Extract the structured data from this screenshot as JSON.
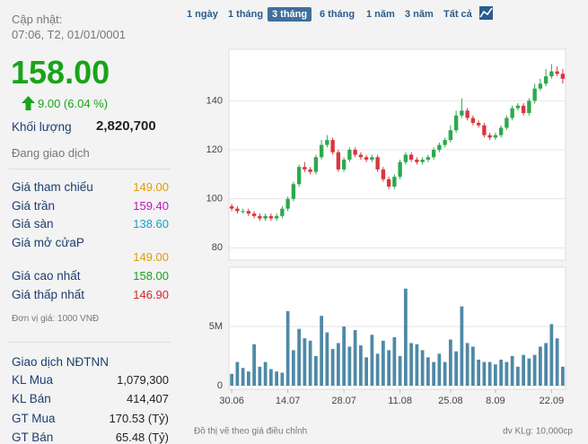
{
  "header": {
    "updated_label": "Cập nhật:",
    "updated_time": "07:06, T2, 01/01/0001",
    "price": "158.00",
    "change": "9.00 (6.04 %)"
  },
  "volume": {
    "label": "Khối lượng",
    "value": "2,820,700"
  },
  "status": "Đang giao dịch",
  "prices": [
    [
      "Giá tham chiếu",
      "149.00"
    ],
    [
      "Giá trần",
      "159.40"
    ],
    [
      "Giá sàn",
      "138.60"
    ],
    [
      "Giá mở cửaP",
      "149.00"
    ],
    [
      "Giá cao nhất",
      "158.00"
    ],
    [
      "Giá thấp nhất",
      "146.90"
    ]
  ],
  "unit_note": "Đơn vị giá: 1000 VNĐ",
  "foreign": {
    "title": "Giao dịch NĐTNN",
    "rows": [
      [
        "KL Mua",
        "1,079,300"
      ],
      [
        "KL Bán",
        "414,407"
      ],
      [
        "GT Mua",
        "170.53 (Tỷ)"
      ],
      [
        "GT Bán",
        "65.48 (Tỷ)"
      ]
    ]
  },
  "range_buttons": [
    "1 ngày",
    "1 tháng",
    "3 tháng",
    "6 tháng",
    "1 năm",
    "3 năm",
    "Tất cả"
  ],
  "note": "Đồ thị vẽ theo giá điều chỉnh",
  "unit": "dv KLg: 10,000cp",
  "chart_data": [
    {
      "type": "candlestick",
      "up_color": "#2fa84f",
      "down_color": "#d9363e",
      "open": [
        97,
        96,
        95,
        95,
        94,
        93,
        92,
        93,
        92,
        93,
        96,
        100,
        106,
        113,
        112,
        111,
        117,
        122,
        124,
        119,
        112,
        116,
        120,
        118,
        117,
        116,
        117,
        112,
        108,
        105,
        109,
        115,
        118,
        116,
        115,
        116,
        117,
        120,
        122,
        124,
        128,
        134,
        136,
        133,
        131,
        130,
        126,
        125,
        126,
        129,
        133,
        137,
        138,
        135,
        140,
        145,
        147,
        150,
        152,
        151
      ],
      "high": [
        98,
        97,
        96,
        96,
        95,
        94,
        94,
        94,
        94,
        97,
        101,
        107,
        114,
        115,
        113,
        118,
        124,
        126,
        125,
        120,
        117,
        121,
        121,
        119,
        118,
        118,
        118,
        113,
        109,
        110,
        116,
        119,
        119,
        117,
        117,
        118,
        121,
        123,
        125,
        130,
        136,
        141,
        137,
        134,
        132,
        131,
        127,
        127,
        130,
        134,
        138,
        139,
        139,
        141,
        147,
        149,
        153,
        155,
        154,
        153
      ],
      "low": [
        95,
        94,
        94,
        93,
        92,
        91,
        91,
        91,
        91,
        92,
        95,
        99,
        105,
        111,
        110,
        110,
        116,
        121,
        118,
        111,
        111,
        115,
        117,
        116,
        115,
        115,
        111,
        107,
        104,
        104,
        108,
        114,
        115,
        114,
        114,
        115,
        116,
        119,
        121,
        123,
        127,
        133,
        132,
        130,
        129,
        125,
        124,
        124,
        125,
        128,
        132,
        136,
        134,
        134,
        139,
        144,
        146,
        149,
        150,
        147
      ],
      "close": [
        96,
        95,
        95,
        94,
        93,
        92,
        93,
        92,
        93,
        96,
        100,
        106,
        113,
        112,
        111,
        117,
        122,
        124,
        119,
        112,
        116,
        120,
        118,
        117,
        116,
        117,
        112,
        108,
        105,
        109,
        115,
        118,
        116,
        115,
        116,
        117,
        120,
        122,
        124,
        128,
        134,
        136,
        133,
        131,
        130,
        126,
        125,
        126,
        129,
        133,
        137,
        138,
        135,
        140,
        145,
        147,
        150,
        152,
        151,
        149
      ],
      "ylim": [
        75,
        161
      ],
      "yticks": [
        80,
        100,
        120,
        140
      ],
      "grid": true
    },
    {
      "type": "bar",
      "color": "#4f89a6",
      "categories": [
        "30.06",
        null,
        null,
        null,
        null,
        null,
        null,
        null,
        null,
        null,
        "14.07",
        null,
        null,
        null,
        null,
        null,
        null,
        null,
        null,
        null,
        "28.07",
        null,
        null,
        null,
        null,
        null,
        null,
        null,
        null,
        null,
        "11.08",
        null,
        null,
        null,
        null,
        null,
        null,
        null,
        null,
        "25.08",
        null,
        null,
        null,
        null,
        null,
        null,
        null,
        "8.09",
        null,
        null,
        null,
        null,
        null,
        null,
        null,
        null,
        null,
        "22.09",
        null,
        null
      ],
      "values": [
        1000000,
        2000000,
        1500000,
        1200000,
        3500000,
        1600000,
        2000000,
        1400000,
        1200000,
        1100000,
        6300000,
        3000000,
        4800000,
        4000000,
        3800000,
        2500000,
        5900000,
        4500000,
        3100000,
        3600000,
        5000000,
        3300000,
        4700000,
        3400000,
        2400000,
        4300000,
        2700000,
        3800000,
        3000000,
        4100000,
        2500000,
        8200000,
        3600000,
        3500000,
        3000000,
        2400000,
        2000000,
        2700000,
        2000000,
        3900000,
        2900000,
        6700000,
        3600000,
        3300000,
        2200000,
        2000000,
        2000000,
        1800000,
        2200000,
        2000000,
        2500000,
        1600000,
        2600000,
        2300000,
        2600000,
        3300000,
        3600000,
        5200000,
        4000000,
        1600000
      ],
      "ylim": [
        0,
        10000000
      ],
      "yticks": [
        0,
        {
          "value": 5000000,
          "label": "5M"
        }
      ],
      "grid": true
    }
  ]
}
